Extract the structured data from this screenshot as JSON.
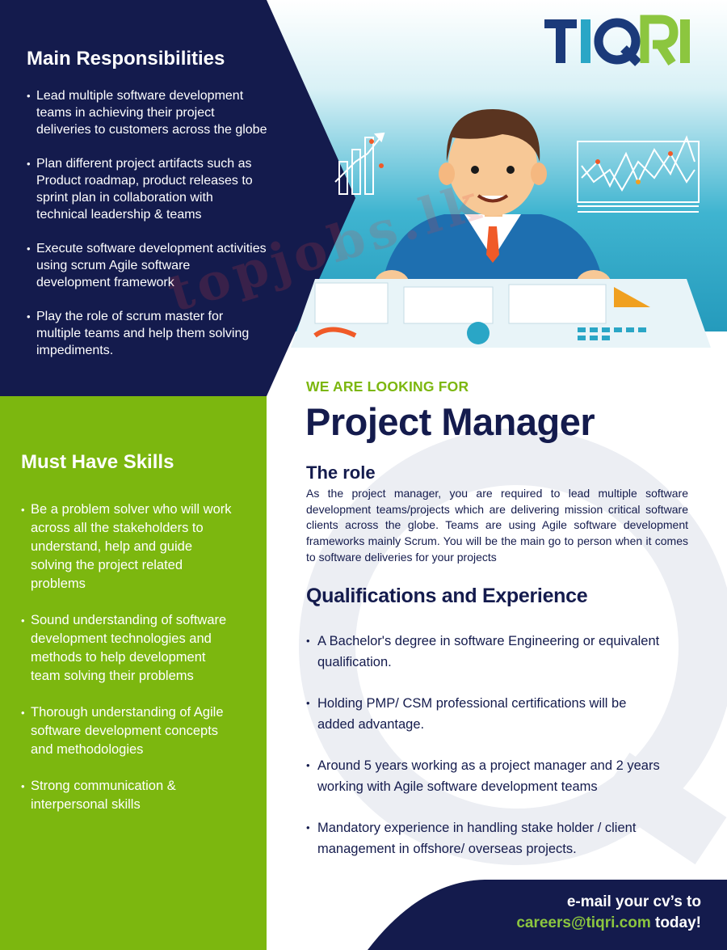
{
  "brand": {
    "logo_text": "TIQRI"
  },
  "watermark": "topjobs.lk",
  "responsibilities": {
    "title": "Main Responsibilities",
    "items": [
      [
        "Lead multiple software development",
        "teams in achieving their project",
        "deliveries to customers across the globe"
      ],
      [
        "Plan different project artifacts such as",
        "Product roadmap, product releases to",
        "sprint plan in collaboration with",
        "technical leadership & teams"
      ],
      [
        "Execute software development activities",
        "using scrum Agile software",
        "development framework"
      ],
      [
        "Play the role of scrum master for",
        "multiple teams and help them solving",
        "impediments."
      ]
    ]
  },
  "skills": {
    "title": "Must Have Skills",
    "items": [
      [
        "Be a problem solver who will work",
        "across all the stakeholders to",
        "understand, help and guide",
        "solving the project related",
        "problems"
      ],
      [
        "Sound understanding of software",
        "development technologies and",
        "methods to help development",
        "team solving their problems"
      ],
      [
        "Thorough understanding of Agile",
        "software development concepts",
        "and methodologies"
      ],
      [
        "Strong communication &",
        "interpersonal skills"
      ]
    ]
  },
  "job": {
    "looking_for": "WE ARE LOOKING FOR",
    "title": "Project Manager"
  },
  "role": {
    "title": "The role",
    "text": "As the project manager, you are required to lead multiple software development teams/projects which are delivering mission critical software clients across the globe. Teams are using Agile software development frameworks mainly Scrum. You will be the main go to person when it comes to software deliveries for your projects"
  },
  "qualifications": {
    "title": "Qualifications and Experience",
    "items": [
      [
        "A Bachelor's degree in software Engineering or equivalent",
        "qualification."
      ],
      [
        "Holding PMP/ CSM professional certifications will be",
        "added advantage."
      ],
      [
        "Around 5 years working as a project manager and 2 years",
        "working with Agile software development teams"
      ],
      [
        "Mandatory experience in handling stake holder / client",
        "management in offshore/ overseas projects."
      ]
    ]
  },
  "cta": {
    "line1": "e-mail your cv’s to",
    "email": "careers@tiqri.com",
    "suffix": " today!"
  },
  "colors": {
    "navy": "#141b4d",
    "green": "#7cb70f",
    "teal": "#2aa6c6",
    "cta_green": "#8cc63f"
  }
}
